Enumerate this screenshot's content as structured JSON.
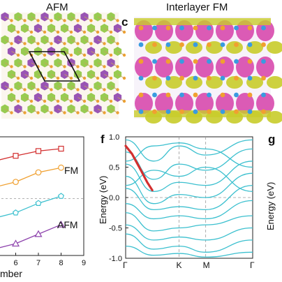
{
  "panels": {
    "a": {
      "title": "AFM"
    },
    "c": {
      "letter": "c",
      "title": "Interlayer FM"
    },
    "e": {
      "label_fm": "FM",
      "label_afm": "AFM",
      "x_ticks": [
        "6",
        "7",
        "8",
        "9"
      ],
      "xlabel_partial": "mber"
    },
    "f": {
      "letter": "f",
      "ylabel": "Energy (eV)",
      "y_ticks": [
        "1.0",
        "0.5",
        "0.0",
        "-0.5",
        "-1.0"
      ],
      "k_labels": [
        "Γ",
        "K",
        "M",
        "Γ"
      ]
    },
    "g": {
      "letter": "g",
      "ylabel_partial": "Energy (eV)"
    }
  },
  "colors": {
    "purple_atom": "#8e44ad",
    "green_atom": "#8dc63f",
    "orange_atom": "#f0a030",
    "cyan_band": "#3cc0cf",
    "red_band": "#d32f2f",
    "charge_magenta": "#d63fa8",
    "charge_olive": "#c8cc2a",
    "blue_atom": "#3a9be0"
  },
  "chart_data": [
    {
      "type": "line",
      "panel": "e",
      "x": [
        6,
        7,
        8
      ],
      "xlim": [
        5,
        9
      ],
      "series": [
        {
          "color": "#d32f2f",
          "marker": "square",
          "values": [
            0.9,
            1.0,
            1.05
          ]
        },
        {
          "color": "#f0a030",
          "marker": "circle",
          "values": [
            0.35,
            0.55,
            0.65
          ]
        },
        {
          "color": "#3cc0cf",
          "marker": "pentagon",
          "values": [
            -0.3,
            -0.1,
            0.05
          ]
        },
        {
          "color": "#8e44ad",
          "marker": "triangle",
          "values": [
            -0.95,
            -0.75,
            -0.55
          ]
        }
      ],
      "annotations": [
        "FM",
        "AFM"
      ]
    },
    {
      "type": "line",
      "panel": "f",
      "ylabel": "Energy (eV)",
      "ylim": [
        -1.0,
        1.0
      ],
      "x_ticks": [
        "Γ",
        "K",
        "M",
        "Γ"
      ],
      "highlight_band": {
        "color": "#d32f2f",
        "points": [
          [
            0.0,
            0.85
          ],
          [
            0.05,
            0.72
          ],
          [
            0.12,
            0.45
          ],
          [
            0.17,
            0.25
          ],
          [
            0.21,
            0.12
          ]
        ]
      }
    }
  ]
}
